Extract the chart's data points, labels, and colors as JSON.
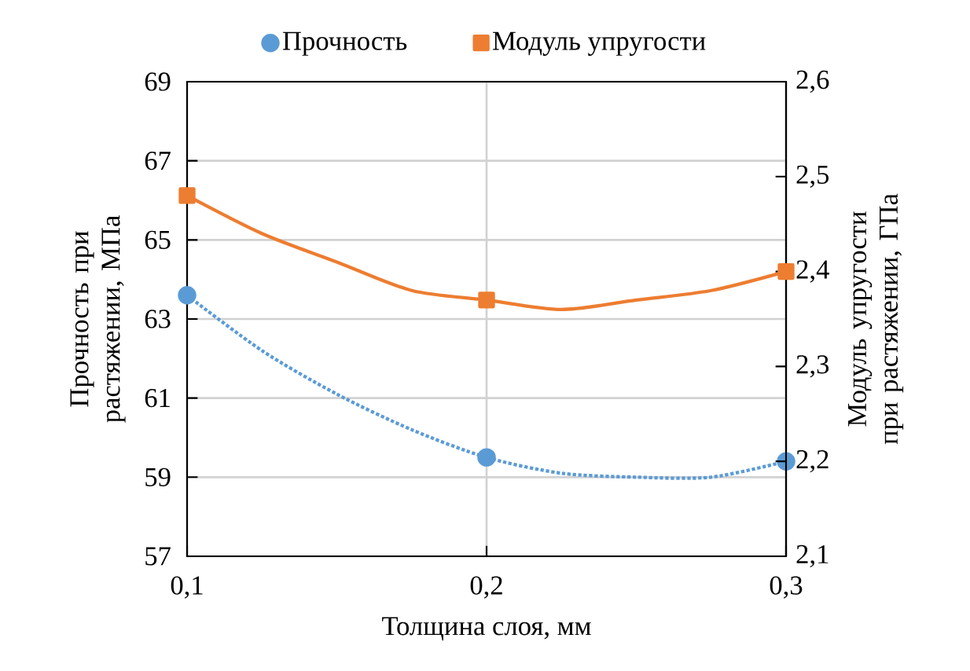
{
  "chart_data": {
    "type": "line",
    "xlabel": "Толщина слоя, мм",
    "ylabel": "Прочность при растяжении, МПа",
    "y2label": "Модуль упругости при растяжении, ГПа",
    "xlim": [
      0.1,
      0.3
    ],
    "xticks": [
      {
        "value": 0.1,
        "label": "0,1"
      },
      {
        "value": 0.2,
        "label": "0,2"
      },
      {
        "value": 0.3,
        "label": "0,3"
      }
    ],
    "ylim": [
      57,
      69
    ],
    "yticks": [
      57,
      59,
      61,
      63,
      65,
      67,
      69
    ],
    "y2lim": [
      2.1,
      2.6
    ],
    "y2ticks": [
      {
        "value": 2.1,
        "label": "2,1"
      },
      {
        "value": 2.2,
        "label": "2,2"
      },
      {
        "value": 2.3,
        "label": "2,3"
      },
      {
        "value": 2.4,
        "label": "2,4"
      },
      {
        "value": 2.5,
        "label": "2,5"
      },
      {
        "value": 2.6,
        "label": "2,6"
      }
    ],
    "grid": true,
    "legend": "top",
    "series": [
      {
        "name": "Прочность",
        "type": "scatter",
        "marker": "circle",
        "color": "#5b9bd5",
        "x": [
          0.1,
          0.2,
          0.3
        ],
        "values": [
          63.6,
          59.5,
          59.4
        ]
      },
      {
        "name": "Модуль упругости",
        "type": "scatter",
        "marker": "square",
        "color": "#ed7d31",
        "axis": "y2",
        "x": [
          0.1,
          0.2,
          0.3
        ],
        "values": [
          2.48,
          2.37,
          2.4
        ]
      },
      {
        "line_style": "dotted",
        "color": "#5b9bd5",
        "x": [
          0.1,
          0.125,
          0.15,
          0.175,
          0.2,
          0.225,
          0.25,
          0.275,
          0.3
        ],
        "values": [
          63.6,
          62.2,
          61.1,
          60.2,
          59.5,
          59.1,
          59.0,
          59.0,
          59.4
        ]
      },
      {
        "line_style": "solid",
        "color": "#ed7d31",
        "axis": "y2",
        "x": [
          0.1,
          0.125,
          0.15,
          0.175,
          0.2,
          0.225,
          0.25,
          0.275,
          0.3
        ],
        "values": [
          2.48,
          2.44,
          2.41,
          2.38,
          2.37,
          2.36,
          2.37,
          2.38,
          2.4
        ]
      }
    ]
  }
}
